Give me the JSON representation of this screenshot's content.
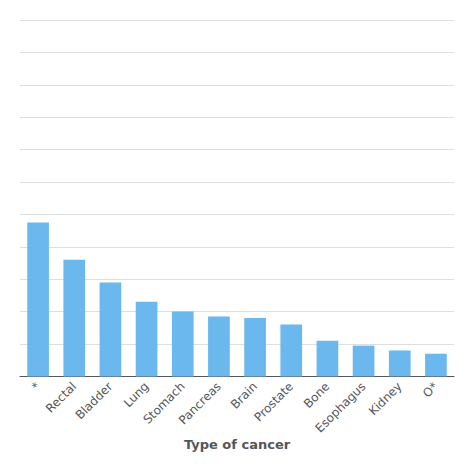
{
  "chart_data": {
    "type": "bar",
    "xlabel": "Type of cancer",
    "categories": [
      "*",
      "Rectal",
      "Bladder",
      "Lung",
      "Stomach",
      "Pancreas",
      "Brain",
      "Prostate",
      "Bone",
      "Esophagus",
      "Kidney",
      "O*"
    ],
    "values": [
      95,
      72,
      58,
      46,
      40,
      37,
      36,
      32,
      22,
      19,
      16,
      14
    ],
    "color": "#6BB8EE",
    "ylim": [
      0,
      220
    ],
    "yticks": [
      0,
      20,
      40,
      60,
      80,
      100,
      120,
      140,
      160,
      180,
      200,
      220
    ],
    "grid": true,
    "tick_labels": "x"
  }
}
